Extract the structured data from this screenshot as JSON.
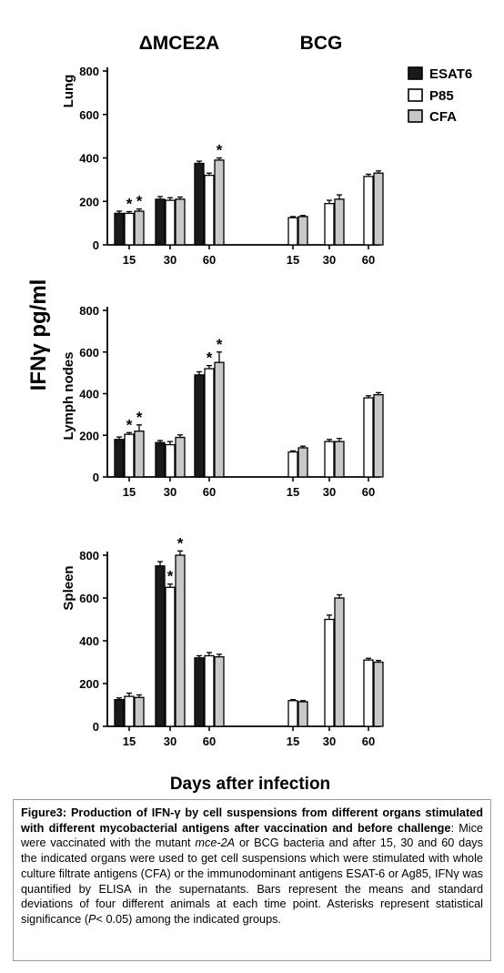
{
  "figure": {
    "group_labels": [
      "ΔMCE2A",
      "BCG"
    ],
    "y_axis_title": "IFNγ pg/ml",
    "x_axis_title": "Days after infection",
    "legend": [
      {
        "label": "ESAT6",
        "color": "#1a1a1a"
      },
      {
        "label": "P85",
        "color": "#ffffff"
      },
      {
        "label": "CFA",
        "color": "#c8c8c8"
      }
    ],
    "significance_marker": "*"
  },
  "caption": {
    "label": "Figure3:",
    "title": " Production of IFN-γ by cell suspensions from different organs stimulated with different mycobacterial antigens after vaccination and before challenge",
    "body_1": ": Mice were vaccinated with the mutant ",
    "italic_1": "mce-2A",
    "body_2": " or BCG bacteria and after 15, 30 and 60 days the indicated organs were used to get cell suspensions which were stimulated with whole culture filtrate antigens (CFA) or the immunodominant antigens ESAT-6 or Ag85, IFNγ was quantified by ELISA in the supernatants. Bars represent the means and standard deviations of four different animals at each time point. Asterisks represent statistical significance (",
    "italic_2": "P",
    "body_3": "< 0.05) among the indicated groups."
  },
  "chart_data": [
    {
      "type": "bar",
      "panel": "Lung",
      "ylabel": "Lung",
      "ylim": [
        0,
        800
      ],
      "yticks": [
        0,
        200,
        400,
        600,
        800
      ],
      "groups": [
        "ΔMCE2A",
        "BCG"
      ],
      "categories": [
        "15",
        "30",
        "60",
        "15",
        "30",
        "60"
      ],
      "series": [
        {
          "name": "ESAT6",
          "values": [
            145,
            210,
            375,
            null,
            null,
            null
          ],
          "errors": [
            10,
            12,
            10,
            0,
            0,
            0
          ]
        },
        {
          "name": "P85",
          "values": [
            145,
            205,
            320,
            125,
            190,
            315
          ],
          "errors": [
            8,
            12,
            10,
            5,
            15,
            10
          ]
        },
        {
          "name": "CFA",
          "values": [
            155,
            210,
            390,
            130,
            210,
            330
          ],
          "errors": [
            10,
            10,
            10,
            5,
            20,
            10
          ]
        }
      ],
      "significant": [
        {
          "category": 0,
          "series": 1
        },
        {
          "category": 0,
          "series": 2
        },
        {
          "category": 2,
          "series": 2
        }
      ]
    },
    {
      "type": "bar",
      "panel": "Lymph nodes",
      "ylabel": "Lymph nodes",
      "ylim": [
        0,
        800
      ],
      "yticks": [
        0,
        200,
        400,
        600,
        800
      ],
      "groups": [
        "ΔMCE2A",
        "BCG"
      ],
      "categories": [
        "15",
        "30",
        "60",
        "15",
        "30",
        "60"
      ],
      "series": [
        {
          "name": "ESAT6",
          "values": [
            180,
            165,
            490,
            null,
            null,
            null
          ],
          "errors": [
            12,
            10,
            15,
            0,
            0,
            0
          ]
        },
        {
          "name": "P85",
          "values": [
            205,
            155,
            520,
            120,
            170,
            380
          ],
          "errors": [
            8,
            15,
            15,
            5,
            10,
            10
          ]
        },
        {
          "name": "CFA",
          "values": [
            220,
            190,
            550,
            140,
            170,
            395
          ],
          "errors": [
            30,
            12,
            50,
            8,
            15,
            10
          ]
        }
      ],
      "significant": [
        {
          "category": 0,
          "series": 1
        },
        {
          "category": 0,
          "series": 2
        },
        {
          "category": 2,
          "series": 1
        },
        {
          "category": 2,
          "series": 2
        }
      ]
    },
    {
      "type": "bar",
      "panel": "Spleen",
      "ylabel": "Spleen",
      "ylim": [
        0,
        800
      ],
      "yticks": [
        0,
        200,
        400,
        600,
        800
      ],
      "groups": [
        "ΔMCE2A",
        "BCG"
      ],
      "categories": [
        "15",
        "30",
        "60",
        "15",
        "30",
        "60"
      ],
      "series": [
        {
          "name": "ESAT6",
          "values": [
            125,
            750,
            320,
            null,
            null,
            null
          ],
          "errors": [
            8,
            20,
            10,
            0,
            0,
            0
          ]
        },
        {
          "name": "P85",
          "values": [
            140,
            650,
            330,
            120,
            500,
            310
          ],
          "errors": [
            15,
            15,
            15,
            5,
            20,
            8
          ]
        },
        {
          "name": "CFA",
          "values": [
            135,
            800,
            325,
            115,
            600,
            300
          ],
          "errors": [
            12,
            20,
            12,
            5,
            15,
            8
          ]
        }
      ],
      "significant": [
        {
          "category": 1,
          "series": 1
        },
        {
          "category": 1,
          "series": 2
        }
      ]
    }
  ]
}
